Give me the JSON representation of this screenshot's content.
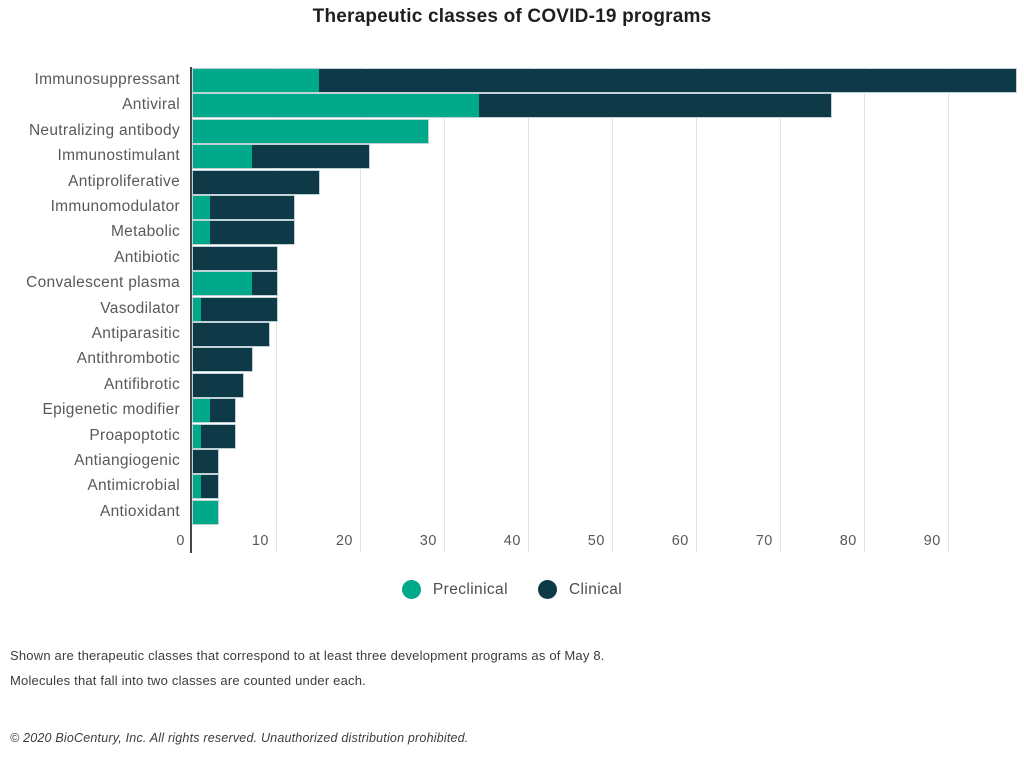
{
  "chart_data": {
    "type": "bar",
    "orientation": "horizontal-stacked",
    "title": "Therapeutic classes of COVID-19 programs",
    "categories": [
      "Immunosuppressant",
      "Antiviral",
      "Neutralizing antibody",
      "Immunostimulant",
      "Antiproliferative",
      "Immunomodulator",
      "Metabolic",
      "Antibiotic",
      "Convalescent plasma",
      "Vasodilator",
      "Antiparasitic",
      "Antithrombotic",
      "Antifibrotic",
      "Epigenetic modifier",
      "Proapoptotic",
      "Antiangiogenic",
      "Antimicrobial",
      "Antioxidant"
    ],
    "series": [
      {
        "name": "Preclinical",
        "color": "#00a98a",
        "values": [
          15,
          34,
          28,
          7,
          0,
          2,
          2,
          0,
          7,
          1,
          0,
          0,
          0,
          2,
          1,
          0,
          1,
          3
        ]
      },
      {
        "name": "Clinical",
        "color": "#0d3a46",
        "values": [
          83,
          42,
          0,
          14,
          15,
          10,
          10,
          10,
          3,
          9,
          9,
          7,
          6,
          3,
          4,
          3,
          2,
          0
        ]
      }
    ],
    "xlabel": "",
    "ylabel": "",
    "xlim": [
      0,
      98
    ],
    "xticks": [
      0,
      10,
      20,
      30,
      40,
      50,
      60,
      70,
      80,
      90
    ],
    "grid": true,
    "legend_position": "bottom"
  },
  "legend_note": "colors match chart_data.series",
  "footnotes": {
    "line1": "Shown are therapeutic classes that correspond to at least three development programs as of May 8.",
    "line2": "Molecules that fall into two classes are counted under each."
  },
  "copyright": "© 2020 BioCentury, Inc. All rights reserved. Unauthorized distribution prohibited."
}
